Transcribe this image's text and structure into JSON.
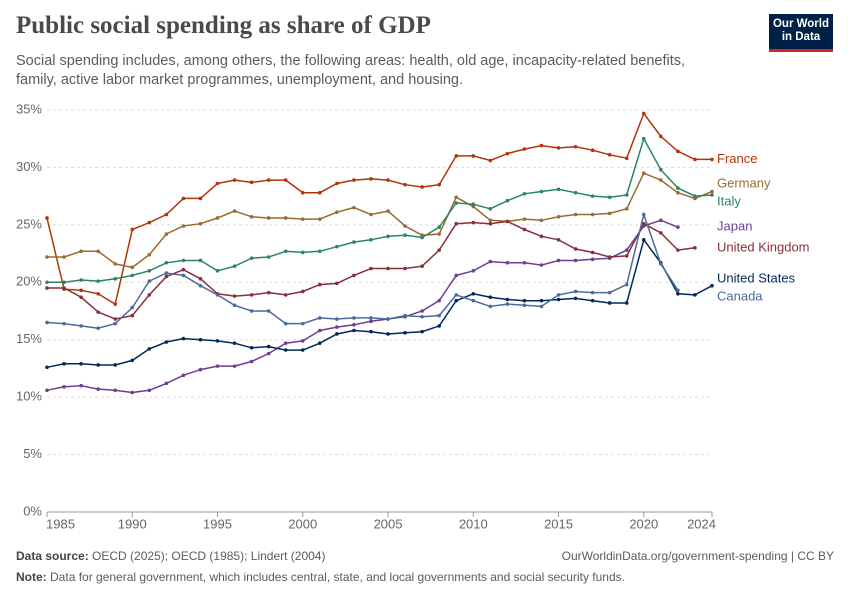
{
  "header": {
    "title": "Public social spending as share of GDP",
    "subtitle": "Social spending includes, among others, the following areas: health, old age, incapacity-related benefits, family, active labor market programmes, unemployment, and housing.",
    "logo": [
      "Our World",
      "in Data"
    ]
  },
  "chart_data": {
    "type": "line",
    "x": [
      1985,
      1986,
      1987,
      1988,
      1989,
      1990,
      1991,
      1992,
      1993,
      1994,
      1995,
      1996,
      1997,
      1998,
      1999,
      2000,
      2001,
      2002,
      2003,
      2004,
      2005,
      2006,
      2007,
      2008,
      2009,
      2010,
      2011,
      2012,
      2013,
      2014,
      2015,
      2016,
      2017,
      2018,
      2019,
      2020,
      2021,
      2022,
      2023,
      2024
    ],
    "xlim": [
      1985,
      2024
    ],
    "xticks": [
      1985,
      1990,
      1995,
      2000,
      2005,
      2010,
      2015,
      2020,
      2024
    ],
    "ylim": [
      0,
      35
    ],
    "yticks": [
      {
        "value": 0,
        "label": "0%"
      },
      {
        "value": 5,
        "label": "5%"
      },
      {
        "value": 10,
        "label": "10%"
      },
      {
        "value": 15,
        "label": "15%"
      },
      {
        "value": 20,
        "label": "20%"
      },
      {
        "value": 25,
        "label": "25%"
      },
      {
        "value": 30,
        "label": "30%"
      },
      {
        "value": 35,
        "label": "35%"
      }
    ],
    "grid": true,
    "series": [
      {
        "name": "France",
        "color": "#b13507",
        "values": [
          25.6,
          19.4,
          19.3,
          19.0,
          18.1,
          24.6,
          25.2,
          25.9,
          27.3,
          27.3,
          28.6,
          28.9,
          28.7,
          28.9,
          28.9,
          27.8,
          27.8,
          28.6,
          28.9,
          29.0,
          28.9,
          28.5,
          28.3,
          28.5,
          31.0,
          31.0,
          30.6,
          31.2,
          31.6,
          31.9,
          31.7,
          31.8,
          31.5,
          31.1,
          30.8,
          34.7,
          32.7,
          31.4,
          30.7,
          30.7
        ]
      },
      {
        "name": "Germany",
        "color": "#9a6a34",
        "values": [
          22.2,
          22.2,
          22.7,
          22.7,
          21.6,
          21.3,
          22.4,
          24.2,
          24.9,
          25.1,
          25.6,
          26.2,
          25.7,
          25.6,
          25.6,
          25.5,
          25.5,
          26.1,
          26.5,
          25.9,
          26.2,
          24.9,
          24.1,
          24.2,
          27.4,
          26.6,
          25.4,
          25.3,
          25.5,
          25.4,
          25.7,
          25.9,
          25.9,
          26.0,
          26.4,
          29.5,
          28.9,
          27.8,
          27.3,
          27.9
        ]
      },
      {
        "name": "Italy",
        "color": "#2c8465",
        "values": [
          20.0,
          20.0,
          20.2,
          20.1,
          20.3,
          20.6,
          21.0,
          21.7,
          21.9,
          21.9,
          21.0,
          21.4,
          22.1,
          22.2,
          22.7,
          22.6,
          22.7,
          23.1,
          23.5,
          23.7,
          24.0,
          24.1,
          23.9,
          24.8,
          26.9,
          26.8,
          26.4,
          27.1,
          27.7,
          27.9,
          28.1,
          27.8,
          27.5,
          27.4,
          27.6,
          32.5,
          29.8,
          28.2,
          27.5,
          27.6
        ]
      },
      {
        "name": "Japan",
        "color": "#6d3e91",
        "values": [
          10.6,
          10.9,
          11.0,
          10.7,
          10.6,
          10.4,
          10.6,
          11.2,
          11.9,
          12.4,
          12.7,
          12.7,
          13.1,
          13.8,
          14.7,
          14.9,
          15.8,
          16.1,
          16.3,
          16.6,
          16.8,
          17.0,
          17.5,
          18.4,
          20.6,
          21.0,
          21.8,
          21.7,
          21.7,
          21.5,
          21.9,
          21.9,
          22.0,
          22.1,
          22.8,
          24.9,
          25.4,
          24.8,
          null,
          null
        ]
      },
      {
        "name": "United Kingdom",
        "color": "#883039",
        "values": [
          19.5,
          19.5,
          18.7,
          17.4,
          16.8,
          17.1,
          18.9,
          20.5,
          21.1,
          20.3,
          19.0,
          18.8,
          18.9,
          19.1,
          18.9,
          19.2,
          19.8,
          19.9,
          20.6,
          21.2,
          21.2,
          21.2,
          21.4,
          22.8,
          25.1,
          25.2,
          25.1,
          25.3,
          24.6,
          24.0,
          23.7,
          22.9,
          22.6,
          22.2,
          22.3,
          25.1,
          24.3,
          22.8,
          23.0,
          null
        ]
      },
      {
        "name": "United States",
        "color": "#00295b",
        "values": [
          12.6,
          12.9,
          12.9,
          12.8,
          12.8,
          13.2,
          14.2,
          14.8,
          15.1,
          15.0,
          14.9,
          14.7,
          14.3,
          14.4,
          14.1,
          14.1,
          14.7,
          15.5,
          15.8,
          15.7,
          15.5,
          15.6,
          15.7,
          16.2,
          18.4,
          19.0,
          18.7,
          18.5,
          18.4,
          18.4,
          18.5,
          18.6,
          18.4,
          18.2,
          18.2,
          23.7,
          21.7,
          19.0,
          18.9,
          19.7
        ]
      },
      {
        "name": "Canada",
        "color": "#4c6a9c",
        "values": [
          16.5,
          16.4,
          16.2,
          16.0,
          16.4,
          17.8,
          20.1,
          20.8,
          20.6,
          19.7,
          18.9,
          18.0,
          17.5,
          17.5,
          16.4,
          16.4,
          16.9,
          16.8,
          16.9,
          16.9,
          16.8,
          17.1,
          17.0,
          17.1,
          18.9,
          18.4,
          17.9,
          18.1,
          18.0,
          17.9,
          18.9,
          19.2,
          19.1,
          19.1,
          19.8,
          25.9,
          21.6,
          19.3,
          null,
          null
        ]
      }
    ]
  },
  "footer": {
    "source_label": "Data source:",
    "source_text": "OECD (2025); OECD (1985); Lindert (2004)",
    "url": "OurWorldinData.org/government-spending | CC BY",
    "note_label": "Note:",
    "note_text": "Data for general government, which includes central, state, and local governments and social security funds."
  }
}
